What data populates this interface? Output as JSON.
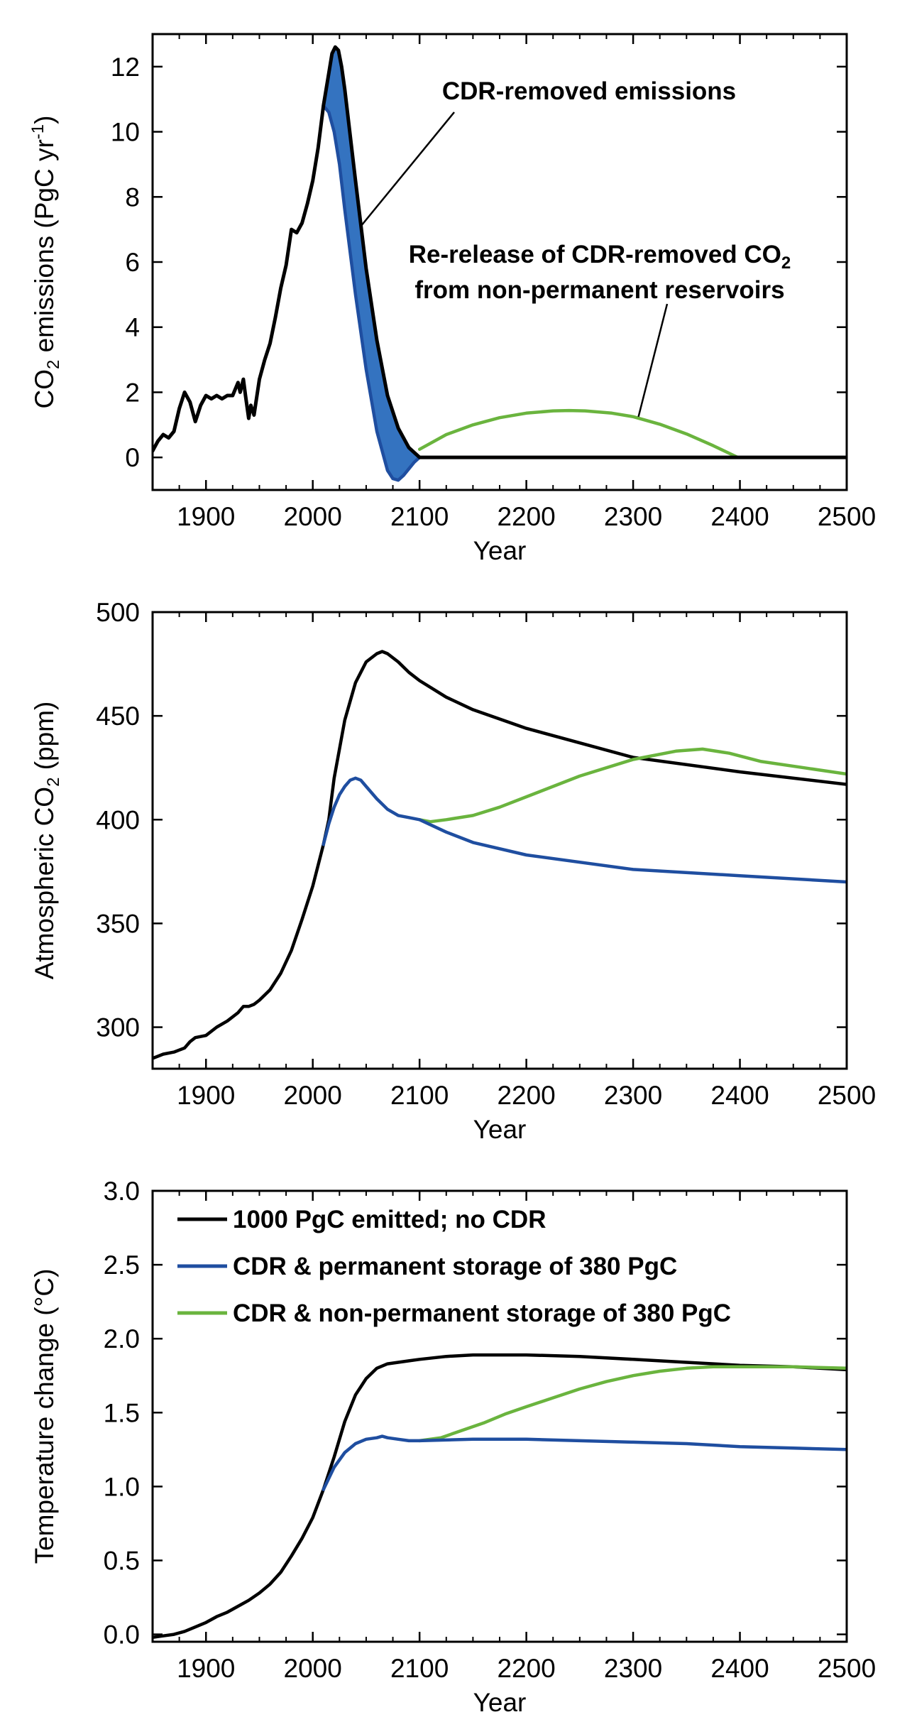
{
  "colors": {
    "no_cdr": "#000000",
    "permanent": "#1f4ea0",
    "non_permanent": "#6ab43e",
    "cdr_fill": "#3473c0"
  },
  "chart_data": [
    {
      "type": "line",
      "panel": "top",
      "xlabel": "Year",
      "ylabel": "CO2 emissions (PgC yr-1)",
      "ylabel_parts": {
        "a": "CO",
        "sub": "2",
        "b": " emissions (PgC yr",
        "sup": "-1",
        "c": ")"
      },
      "xlim": [
        1850,
        2500
      ],
      "ylim": [
        -1,
        13
      ],
      "xticks": [
        "1900",
        "2000",
        "2100",
        "2200",
        "2300",
        "2400",
        "2500"
      ],
      "yticks": [
        "0",
        "2",
        "4",
        "6",
        "8",
        "10",
        "12"
      ],
      "series": [
        {
          "key": "no_cdr",
          "x": [
            1850,
            1855,
            1860,
            1865,
            1870,
            1875,
            1880,
            1885,
            1890,
            1895,
            1900,
            1905,
            1910,
            1915,
            1920,
            1925,
            1930,
            1932,
            1935,
            1937,
            1940,
            1942,
            1945,
            1950,
            1955,
            1960,
            1965,
            1970,
            1975,
            1980,
            1985,
            1990,
            1995,
            2000,
            2005,
            2010,
            2015,
            2018,
            2021,
            2024,
            2027,
            2030,
            2040,
            2050,
            2060,
            2070,
            2080,
            2090,
            2100,
            2150,
            2200,
            2300,
            2400,
            2500
          ],
          "y": [
            0.2,
            0.5,
            0.7,
            0.6,
            0.8,
            1.5,
            2.0,
            1.7,
            1.1,
            1.6,
            1.9,
            1.8,
            1.9,
            1.8,
            1.9,
            1.9,
            2.3,
            2.0,
            2.4,
            1.9,
            1.2,
            1.6,
            1.3,
            2.4,
            3.0,
            3.5,
            4.3,
            5.2,
            5.9,
            7.0,
            6.9,
            7.2,
            7.8,
            8.5,
            9.5,
            10.8,
            11.8,
            12.4,
            12.6,
            12.5,
            12.0,
            11.3,
            8.5,
            5.8,
            3.6,
            1.9,
            0.9,
            0.3,
            0.0,
            0.0,
            0.0,
            0.0,
            0.0,
            0.0
          ]
        },
        {
          "key": "permanent",
          "x": [
            2010,
            2015,
            2020,
            2025,
            2030,
            2040,
            2050,
            2060,
            2070,
            2075,
            2080,
            2085,
            2090,
            2095,
            2100,
            2150,
            2200,
            2300,
            2400,
            2500
          ],
          "y": [
            10.8,
            10.6,
            10.0,
            9.0,
            7.6,
            5.0,
            2.7,
            0.8,
            -0.4,
            -0.65,
            -0.7,
            -0.55,
            -0.35,
            -0.15,
            0.0,
            0.0,
            0.0,
            0.0,
            0.0,
            0.0
          ]
        },
        {
          "key": "non_permanent",
          "x": [
            2100,
            2125,
            2150,
            2175,
            2200,
            2225,
            2240,
            2255,
            2280,
            2300,
            2325,
            2350,
            2375,
            2398
          ],
          "y": [
            0.25,
            0.7,
            1.0,
            1.22,
            1.36,
            1.43,
            1.44,
            1.43,
            1.36,
            1.25,
            1.02,
            0.72,
            0.36,
            0.0
          ]
        }
      ],
      "annotations": [
        {
          "text": "CDR-removed emissions",
          "x": 2045,
          "y": 7.1
        },
        {
          "text": "Re-release of CDR-removed CO",
          "sub": "2",
          "line2": "from non-permanent reservoirs",
          "x": 2305,
          "y": 1.25
        }
      ]
    },
    {
      "type": "line",
      "panel": "middle",
      "xlabel": "Year",
      "ylabel": "Atmospheric CO2 (ppm)",
      "ylabel_parts": {
        "a": "Atmospheric CO",
        "sub": "2",
        "b": " (ppm)"
      },
      "xlim": [
        1850,
        2500
      ],
      "ylim": [
        280,
        500
      ],
      "xticks": [
        "1900",
        "2000",
        "2100",
        "2200",
        "2300",
        "2400",
        "2500"
      ],
      "yticks": [
        "300",
        "350",
        "400",
        "450",
        "500"
      ],
      "series": [
        {
          "key": "no_cdr",
          "x": [
            1850,
            1860,
            1870,
            1880,
            1885,
            1890,
            1900,
            1910,
            1920,
            1930,
            1935,
            1940,
            1945,
            1950,
            1960,
            1970,
            1980,
            1990,
            2000,
            2010,
            2015,
            2020,
            2030,
            2040,
            2050,
            2060,
            2065,
            2070,
            2080,
            2090,
            2100,
            2125,
            2150,
            2200,
            2300,
            2400,
            2500
          ],
          "y": [
            285,
            287,
            288,
            290,
            293,
            295,
            296,
            300,
            303,
            307,
            310,
            310,
            311,
            313,
            318,
            326,
            337,
            352,
            368,
            388,
            400,
            420,
            448,
            466,
            476,
            480,
            481,
            480,
            476,
            471,
            467,
            459,
            453,
            444,
            430,
            423,
            417
          ]
        },
        {
          "key": "permanent",
          "x": [
            2010,
            2015,
            2020,
            2025,
            2030,
            2035,
            2040,
            2045,
            2050,
            2060,
            2070,
            2080,
            2090,
            2100,
            2125,
            2150,
            2200,
            2300,
            2400,
            2500
          ],
          "y": [
            388,
            398,
            406,
            412,
            416,
            419,
            420,
            419,
            416,
            410,
            405,
            402,
            401,
            400,
            394,
            389,
            383,
            376,
            373,
            370
          ]
        },
        {
          "key": "non_permanent",
          "x": [
            2100,
            2110,
            2125,
            2150,
            2175,
            2200,
            2250,
            2300,
            2340,
            2365,
            2390,
            2420,
            2460,
            2500
          ],
          "y": [
            400,
            399,
            400,
            402,
            406,
            411,
            421,
            429,
            433,
            434,
            432,
            428,
            425,
            422
          ]
        }
      ]
    },
    {
      "type": "line",
      "panel": "bottom",
      "xlabel": "Year",
      "ylabel": "Temperature change (°C)",
      "xlim": [
        1850,
        2500
      ],
      "ylim": [
        -0.05,
        3.0
      ],
      "xticks": [
        "1900",
        "2000",
        "2100",
        "2200",
        "2300",
        "2400",
        "2500"
      ],
      "yticks": [
        "0.0",
        "0.5",
        "1.0",
        "1.5",
        "2.0",
        "2.5",
        "3.0"
      ],
      "legend": {
        "position": "top-left"
      },
      "series": [
        {
          "key": "no_cdr",
          "name": "1000 PgC emitted; no CDR",
          "x": [
            1850,
            1860,
            1870,
            1880,
            1890,
            1900,
            1910,
            1920,
            1930,
            1940,
            1950,
            1960,
            1970,
            1980,
            1990,
            2000,
            2010,
            2020,
            2030,
            2040,
            2050,
            2060,
            2070,
            2080,
            2090,
            2100,
            2125,
            2150,
            2175,
            2200,
            2250,
            2300,
            2350,
            2400,
            2450,
            2500
          ],
          "y": [
            -0.02,
            -0.01,
            0.0,
            0.02,
            0.05,
            0.08,
            0.12,
            0.15,
            0.19,
            0.23,
            0.28,
            0.34,
            0.42,
            0.53,
            0.65,
            0.79,
            0.98,
            1.2,
            1.44,
            1.62,
            1.73,
            1.8,
            1.83,
            1.84,
            1.85,
            1.86,
            1.88,
            1.89,
            1.89,
            1.89,
            1.88,
            1.86,
            1.84,
            1.82,
            1.81,
            1.79
          ]
        },
        {
          "key": "permanent",
          "name": "CDR & permanent storage of 380 PgC",
          "x": [
            2010,
            2020,
            2030,
            2040,
            2050,
            2060,
            2065,
            2070,
            2080,
            2090,
            2100,
            2150,
            2200,
            2250,
            2300,
            2350,
            2400,
            2450,
            2500
          ],
          "y": [
            0.98,
            1.13,
            1.23,
            1.29,
            1.32,
            1.33,
            1.34,
            1.33,
            1.32,
            1.31,
            1.31,
            1.32,
            1.32,
            1.31,
            1.3,
            1.29,
            1.27,
            1.26,
            1.25
          ]
        },
        {
          "key": "non_permanent",
          "name": "CDR & non-permanent storage of 380 PgC",
          "x": [
            2100,
            2120,
            2140,
            2160,
            2180,
            2200,
            2225,
            2250,
            2275,
            2300,
            2325,
            2350,
            2375,
            2400,
            2450,
            2500
          ],
          "y": [
            1.31,
            1.33,
            1.38,
            1.43,
            1.49,
            1.54,
            1.6,
            1.66,
            1.71,
            1.75,
            1.78,
            1.8,
            1.81,
            1.81,
            1.81,
            1.8
          ]
        }
      ]
    }
  ]
}
